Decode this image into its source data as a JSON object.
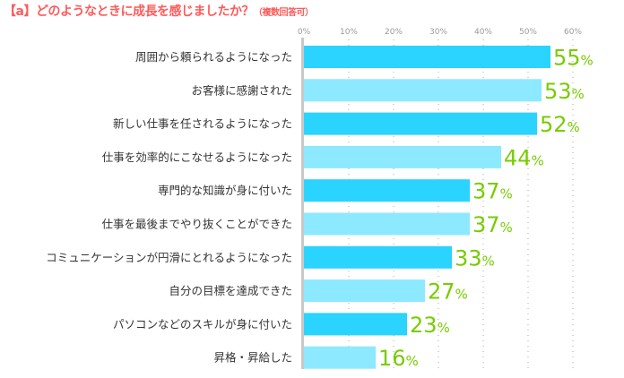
{
  "chart_data": {
    "type": "bar",
    "orientation": "horizontal",
    "title": "【a】どのようなときに成長を感じましたか？",
    "subtitle": "（複数回答可）",
    "categories": [
      "周囲から頼られるようになった",
      "お客様に感謝された",
      "新しい仕事を任されるようになった",
      "仕事を効率的にこなせるようになった",
      "専門的な知識が身に付いた",
      "仕事を最後までやり抜くことができた",
      "コミュニケーションが円滑にとれるようになった",
      "自分の目標を達成できた",
      "パソコンなどのスキルが身に付いた",
      "昇格・昇給した"
    ],
    "values": [
      55,
      53,
      52,
      44,
      37,
      37,
      33,
      27,
      23,
      16
    ],
    "data_labels": [
      "55",
      "53",
      "52",
      "44",
      "37",
      "37",
      "33",
      "27",
      "23",
      "16"
    ],
    "label_suffix": "%",
    "xlim": [
      0,
      60
    ],
    "ticks": [
      "0%",
      "10%",
      "20%",
      "30%",
      "40%",
      "50%",
      "60%"
    ],
    "grid": true,
    "colors": {
      "bar_dark": "#2bd3ff",
      "bar_light": "#8de9ff",
      "label": "#77cc00",
      "title": "#ff5a5a",
      "axis": "#c8c8c8",
      "tick": "#9a9a9a",
      "category": "#333333"
    }
  }
}
